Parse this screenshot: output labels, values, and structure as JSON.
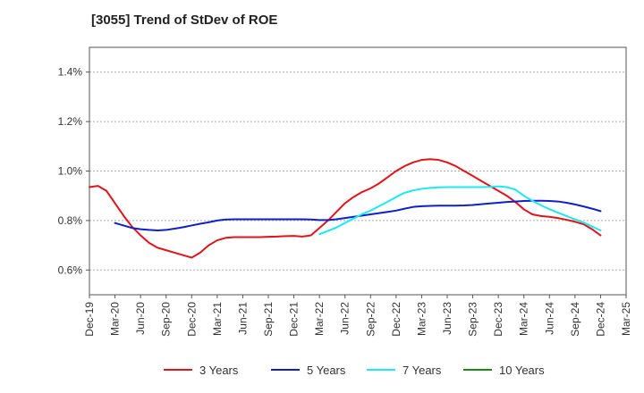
{
  "chart_data": {
    "type": "line",
    "title": "[3055]  Trend of StDev of ROE",
    "xlabel": "",
    "ylabel": "",
    "ylim": [
      0.5,
      1.5
    ],
    "y_ticks": [
      {
        "value": 0.6,
        "label": "0.6%"
      },
      {
        "value": 0.8,
        "label": "0.8%"
      },
      {
        "value": 1.0,
        "label": "1.0%"
      },
      {
        "value": 1.2,
        "label": "1.2%"
      },
      {
        "value": 1.4,
        "label": "1.4%"
      }
    ],
    "x_ticks": [
      "Dec-19",
      "Mar-20",
      "Jun-20",
      "Sep-20",
      "Dec-20",
      "Mar-21",
      "Jun-21",
      "Sep-21",
      "Dec-21",
      "Mar-22",
      "Jun-22",
      "Sep-22",
      "Dec-22",
      "Mar-23",
      "Jun-23",
      "Sep-23",
      "Dec-23",
      "Mar-24",
      "Jun-24",
      "Sep-24",
      "Dec-24",
      "Mar-25"
    ],
    "grid": true,
    "legend_position": "bottom",
    "series": [
      {
        "name": "3 Years",
        "color": "#e0141b",
        "points": [
          [
            "Dec-19",
            0.935
          ],
          [
            "Jan-20",
            0.94
          ],
          [
            "Feb-20",
            0.92
          ],
          [
            "Mar-20",
            0.87
          ],
          [
            "Apr-20",
            0.82
          ],
          [
            "May-20",
            0.775
          ],
          [
            "Jun-20",
            0.74
          ],
          [
            "Jul-20",
            0.71
          ],
          [
            "Aug-20",
            0.69
          ],
          [
            "Sep-20",
            0.68
          ],
          [
            "Oct-20",
            0.67
          ],
          [
            "Nov-20",
            0.66
          ],
          [
            "Dec-20",
            0.65
          ],
          [
            "Jan-21",
            0.67
          ],
          [
            "Feb-21",
            0.7
          ],
          [
            "Mar-21",
            0.72
          ],
          [
            "Apr-21",
            0.73
          ],
          [
            "May-21",
            0.733
          ],
          [
            "Jun-21",
            0.733
          ],
          [
            "Jul-21",
            0.733
          ],
          [
            "Aug-21",
            0.733
          ],
          [
            "Sep-21",
            0.734
          ],
          [
            "Oct-21",
            0.735
          ],
          [
            "Nov-21",
            0.737
          ],
          [
            "Dec-21",
            0.738
          ],
          [
            "Jan-22",
            0.735
          ],
          [
            "Feb-22",
            0.74
          ],
          [
            "Mar-22",
            0.77
          ],
          [
            "Apr-22",
            0.8
          ],
          [
            "May-22",
            0.835
          ],
          [
            "Jun-22",
            0.87
          ],
          [
            "Jul-22",
            0.895
          ],
          [
            "Aug-22",
            0.915
          ],
          [
            "Sep-22",
            0.93
          ],
          [
            "Oct-22",
            0.95
          ],
          [
            "Nov-22",
            0.975
          ],
          [
            "Dec-22",
            1.0
          ],
          [
            "Jan-23",
            1.02
          ],
          [
            "Feb-23",
            1.035
          ],
          [
            "Mar-23",
            1.045
          ],
          [
            "Apr-23",
            1.048
          ],
          [
            "May-23",
            1.045
          ],
          [
            "Jun-23",
            1.035
          ],
          [
            "Jul-23",
            1.02
          ],
          [
            "Aug-23",
            1.0
          ],
          [
            "Sep-23",
            0.98
          ],
          [
            "Oct-23",
            0.96
          ],
          [
            "Nov-23",
            0.94
          ],
          [
            "Dec-23",
            0.92
          ],
          [
            "Jan-24",
            0.9
          ],
          [
            "Feb-24",
            0.875
          ],
          [
            "Mar-24",
            0.845
          ],
          [
            "Apr-24",
            0.825
          ],
          [
            "May-24",
            0.818
          ],
          [
            "Jun-24",
            0.815
          ],
          [
            "Jul-24",
            0.81
          ],
          [
            "Aug-24",
            0.803
          ],
          [
            "Sep-24",
            0.795
          ],
          [
            "Oct-24",
            0.785
          ],
          [
            "Nov-24",
            0.765
          ],
          [
            "Dec-24",
            0.74
          ]
        ]
      },
      {
        "name": "5 Years",
        "color": "#1020c8",
        "points": [
          [
            "Mar-20",
            0.79
          ],
          [
            "Apr-20",
            0.78
          ],
          [
            "May-20",
            0.77
          ],
          [
            "Jun-20",
            0.765
          ],
          [
            "Jul-20",
            0.762
          ],
          [
            "Aug-20",
            0.76
          ],
          [
            "Sep-20",
            0.762
          ],
          [
            "Oct-20",
            0.767
          ],
          [
            "Nov-20",
            0.773
          ],
          [
            "Dec-20",
            0.78
          ],
          [
            "Jan-21",
            0.787
          ],
          [
            "Feb-21",
            0.793
          ],
          [
            "Mar-21",
            0.8
          ],
          [
            "Apr-21",
            0.804
          ],
          [
            "May-21",
            0.805
          ],
          [
            "Jun-21",
            0.805
          ],
          [
            "Jul-21",
            0.805
          ],
          [
            "Aug-21",
            0.805
          ],
          [
            "Sep-21",
            0.805
          ],
          [
            "Oct-21",
            0.805
          ],
          [
            "Nov-21",
            0.805
          ],
          [
            "Dec-21",
            0.805
          ],
          [
            "Jan-22",
            0.805
          ],
          [
            "Feb-22",
            0.804
          ],
          [
            "Mar-22",
            0.802
          ],
          [
            "Apr-22",
            0.802
          ],
          [
            "May-22",
            0.805
          ],
          [
            "Jun-22",
            0.81
          ],
          [
            "Jul-22",
            0.815
          ],
          [
            "Aug-22",
            0.82
          ],
          [
            "Sep-22",
            0.825
          ],
          [
            "Oct-22",
            0.83
          ],
          [
            "Nov-22",
            0.835
          ],
          [
            "Dec-22",
            0.84
          ],
          [
            "Jan-23",
            0.848
          ],
          [
            "Feb-23",
            0.855
          ],
          [
            "Mar-23",
            0.858
          ],
          [
            "Apr-23",
            0.859
          ],
          [
            "May-23",
            0.86
          ],
          [
            "Jun-23",
            0.86
          ],
          [
            "Jul-23",
            0.86
          ],
          [
            "Aug-23",
            0.861
          ],
          [
            "Sep-23",
            0.863
          ],
          [
            "Oct-23",
            0.866
          ],
          [
            "Nov-23",
            0.869
          ],
          [
            "Dec-23",
            0.872
          ],
          [
            "Jan-24",
            0.875
          ],
          [
            "Feb-24",
            0.877
          ],
          [
            "Mar-24",
            0.879
          ],
          [
            "Apr-24",
            0.88
          ],
          [
            "May-24",
            0.88
          ],
          [
            "Jun-24",
            0.879
          ],
          [
            "Jul-24",
            0.877
          ],
          [
            "Aug-24",
            0.872
          ],
          [
            "Sep-24",
            0.865
          ],
          [
            "Oct-24",
            0.857
          ],
          [
            "Nov-24",
            0.848
          ],
          [
            "Dec-24",
            0.838
          ]
        ]
      },
      {
        "name": "7 Years",
        "color": "#1ee8f0",
        "points": [
          [
            "Mar-22",
            0.745
          ],
          [
            "Apr-22",
            0.758
          ],
          [
            "May-22",
            0.772
          ],
          [
            "Jun-22",
            0.79
          ],
          [
            "Jul-22",
            0.808
          ],
          [
            "Aug-22",
            0.826
          ],
          [
            "Sep-22",
            0.84
          ],
          [
            "Oct-22",
            0.858
          ],
          [
            "Nov-22",
            0.876
          ],
          [
            "Dec-22",
            0.895
          ],
          [
            "Jan-23",
            0.912
          ],
          [
            "Feb-23",
            0.922
          ],
          [
            "Mar-23",
            0.928
          ],
          [
            "Apr-23",
            0.932
          ],
          [
            "May-23",
            0.934
          ],
          [
            "Jun-23",
            0.935
          ],
          [
            "Jul-23",
            0.935
          ],
          [
            "Aug-23",
            0.935
          ],
          [
            "Sep-23",
            0.935
          ],
          [
            "Oct-23",
            0.935
          ],
          [
            "Nov-23",
            0.936
          ],
          [
            "Dec-23",
            0.938
          ],
          [
            "Jan-24",
            0.935
          ],
          [
            "Feb-24",
            0.925
          ],
          [
            "Mar-24",
            0.9
          ],
          [
            "Apr-24",
            0.88
          ],
          [
            "May-24",
            0.862
          ],
          [
            "Jun-24",
            0.846
          ],
          [
            "Jul-24",
            0.832
          ],
          [
            "Aug-24",
            0.818
          ],
          [
            "Sep-24",
            0.805
          ],
          [
            "Oct-24",
            0.792
          ],
          [
            "Nov-24",
            0.776
          ],
          [
            "Dec-24",
            0.76
          ]
        ]
      },
      {
        "name": "10 Years",
        "color": "#1a8a1a",
        "points": []
      }
    ]
  }
}
